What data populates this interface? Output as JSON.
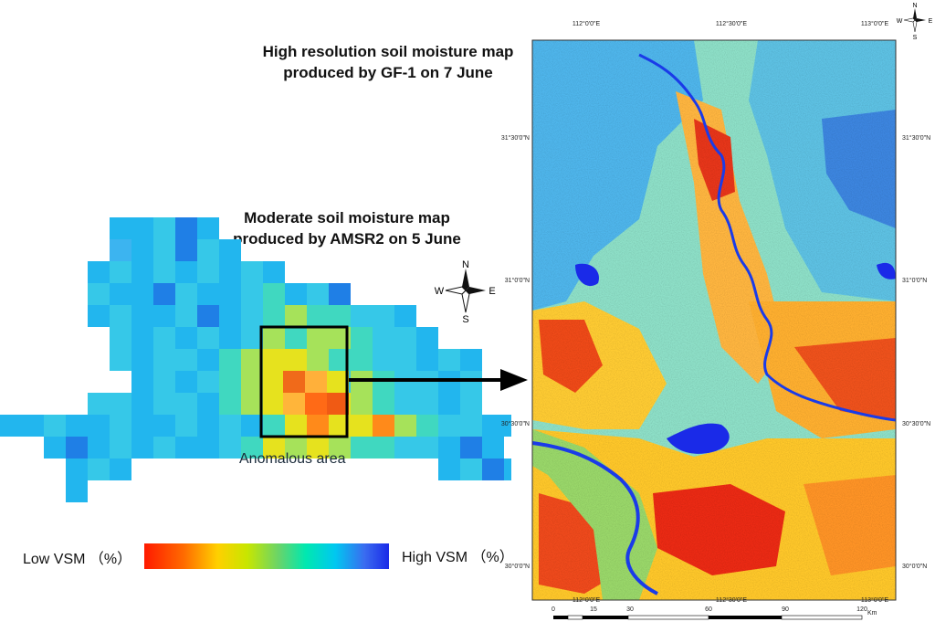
{
  "titles": {
    "high_res": "High resolution soil moisture map\nproduced by GF-1 on 7 June",
    "moderate": "Moderate soil moisture map\nproduced by AMSR2 on 5 June"
  },
  "moderate_map": {
    "anomaly_label": "Anomalous area"
  },
  "compass": {
    "n": "N",
    "s": "S",
    "e": "E",
    "w": "W"
  },
  "legend": {
    "low_label": "Low VSM （%）",
    "high_label": "High VSM （%）",
    "colors": [
      "#ff1a00",
      "#ff6a00",
      "#ffd000",
      "#c8e600",
      "#68d46a",
      "#00e8b0",
      "#00c8f0",
      "#3a6cf0",
      "#1a2ae8"
    ]
  },
  "high_res_map": {
    "top_longitudes": [
      "112°0'0\"E",
      "112°30'0\"E",
      "113°0'0\"E"
    ],
    "bottom_longitudes": [
      "112°0'0\"E",
      "112°30'0\"E",
      "113°0'0\"E"
    ],
    "left_latitudes": [
      "31°30'0\"N",
      "31°0'0\"N",
      "30°30'0\"N",
      "30°0'0\"N"
    ],
    "right_latitudes": [
      "31°30'0\"N",
      "31°0'0\"N",
      "30°30'0\"N",
      "30°0'0\"N"
    ],
    "scale_ticks": [
      "0",
      "15",
      "30",
      "60",
      "90",
      "120"
    ],
    "scale_unit": "Km"
  }
}
